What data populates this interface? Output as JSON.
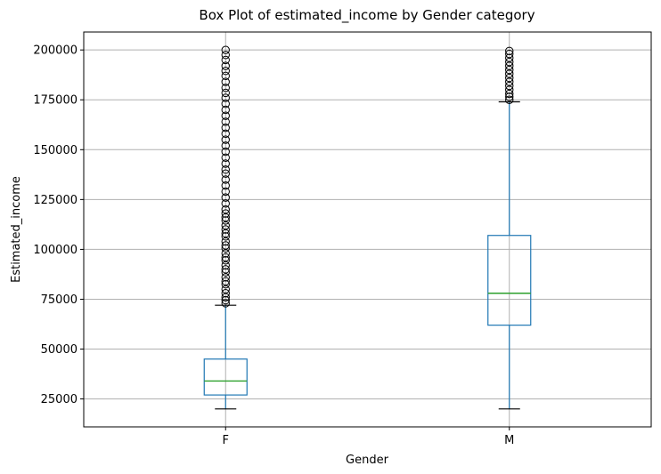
{
  "chart_data": {
    "type": "box",
    "title": "Box Plot of estimated_income by Gender category",
    "xlabel": "Gender",
    "ylabel": "Estimated_income",
    "categories": [
      "F",
      "M"
    ],
    "ylim": [
      11000,
      209000
    ],
    "yticks": [
      25000,
      50000,
      75000,
      100000,
      125000,
      150000,
      175000,
      200000
    ],
    "ytick_labels": [
      "25000",
      "50000",
      "75000",
      "100000",
      "125000",
      "150000",
      "175000",
      "200000"
    ],
    "grid": true,
    "boxes": [
      {
        "category": "F",
        "whisker_low": 20000,
        "q1": 27000,
        "median": 34000,
        "q3": 45000,
        "whisker_high": 72000,
        "outliers": [
          73000,
          74500,
          76000,
          78000,
          80000,
          82500,
          84000,
          86000,
          88500,
          90000,
          92000,
          94500,
          96000,
          98000,
          100500,
          102000,
          104000,
          106500,
          108000,
          110000,
          112000,
          114500,
          116000,
          118000,
          120000,
          123000,
          126000,
          129000,
          132000,
          135000,
          138000,
          140000,
          143000,
          146000,
          149000,
          152000,
          155000,
          158000,
          161000,
          164000,
          167000,
          170000,
          173000,
          176000,
          178500,
          181000,
          184000,
          187000,
          189500,
          192000,
          195000,
          197500,
          200000
        ]
      },
      {
        "category": "M",
        "whisker_low": 20000,
        "q1": 62000,
        "median": 78000,
        "q3": 107000,
        "whisker_high": 174000,
        "outliers": [
          175000,
          176500,
          178000,
          180000,
          182000,
          184000,
          186000,
          188000,
          190000,
          192000,
          194000,
          196000,
          198000,
          199500
        ]
      }
    ],
    "colors": {
      "box": "#1f77b4",
      "median": "#2ca02c",
      "caps": "#000000",
      "outlier_edge": "#000000",
      "grid": "#b0b0b0"
    }
  }
}
